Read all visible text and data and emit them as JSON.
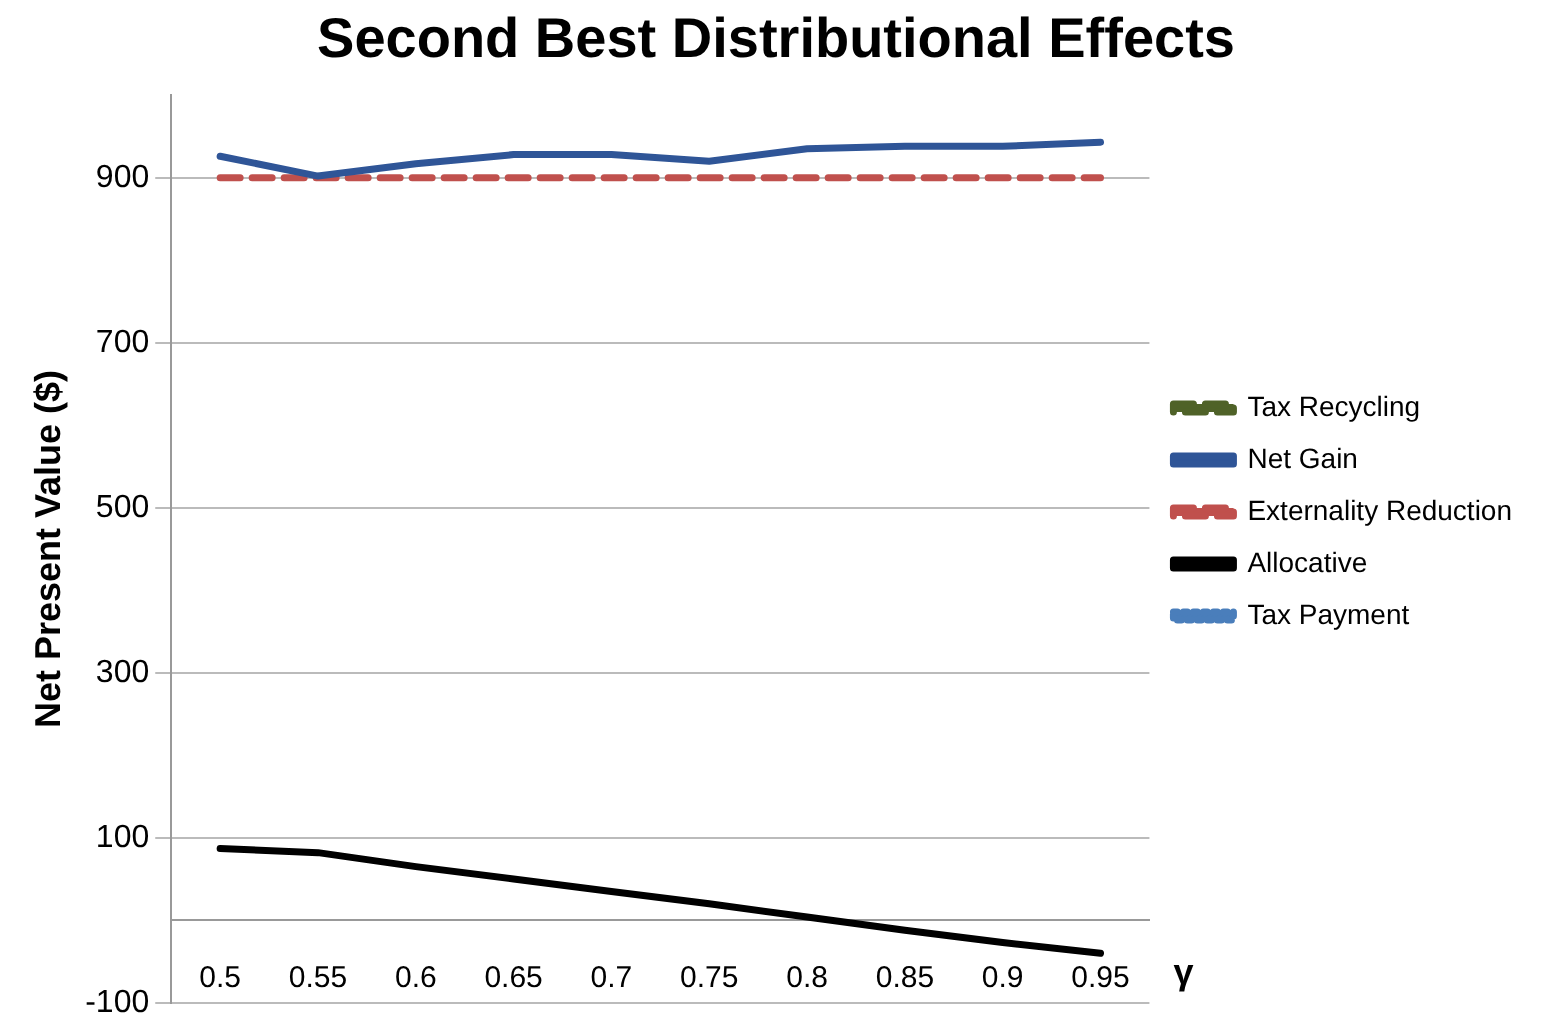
{
  "chart_data": {
    "type": "line",
    "title": "Second Best Distributional Effects",
    "xlabel": "γ",
    "ylabel": "Net Present Value ($)",
    "categories": [
      "0.5",
      "0.55",
      "0.6",
      "0.65",
      "0.7",
      "0.75",
      "0.8",
      "0.85",
      "0.9",
      "0.95"
    ],
    "series": [
      {
        "name": "Tax Recycling",
        "color": "#4f6228",
        "line_style": "dashed",
        "values": [
          null,
          null,
          null,
          null,
          null,
          null,
          null,
          null,
          null,
          null
        ]
      },
      {
        "name": "Net Gain",
        "color": "#2f5597",
        "line_style": "solid",
        "values": [
          926,
          902,
          917,
          928,
          928,
          920,
          935,
          938,
          938,
          943
        ]
      },
      {
        "name": "Externality Reduction",
        "color": "#c0504d",
        "line_style": "dashed",
        "values": [
          900,
          900,
          900,
          900,
          900,
          900,
          900,
          900,
          900,
          900
        ]
      },
      {
        "name": "Allocative",
        "color": "#000000",
        "line_style": "solid",
        "values": [
          87,
          82,
          65,
          50,
          35,
          20,
          4,
          -12,
          -27,
          -40
        ]
      },
      {
        "name": "Tax Payment",
        "color": "#4a7ebb",
        "line_style": "dotted",
        "values": [
          null,
          null,
          null,
          null,
          null,
          null,
          null,
          null,
          null,
          null
        ]
      }
    ],
    "ylim": [
      -100,
      1000
    ],
    "yticks": [
      -100,
      100,
      300,
      500,
      700,
      900
    ],
    "grid": "y",
    "legend": "right",
    "marker": "none"
  }
}
